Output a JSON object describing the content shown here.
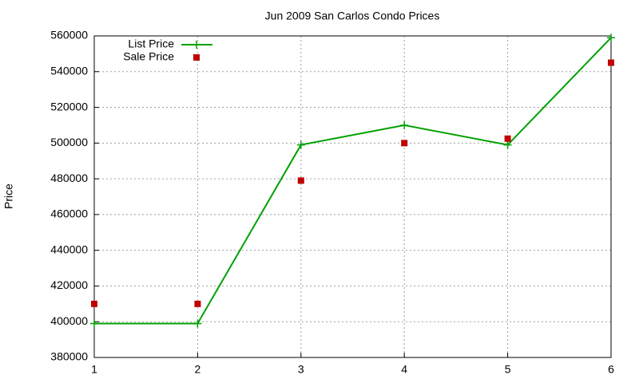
{
  "chart_data": {
    "type": "line",
    "title": "Jun 2009 San Carlos Condo Prices",
    "y_label": "Price",
    "x": [
      1,
      2,
      3,
      4,
      5,
      6
    ],
    "series": [
      {
        "name": "List Price",
        "color": "#00a000",
        "style": "linespoints",
        "values": [
          399000,
          399000,
          499000,
          510000,
          499000,
          559000
        ]
      },
      {
        "name": "Sale Price",
        "color": "#c00000",
        "style": "points",
        "values": [
          410000,
          410000,
          479000,
          500000,
          502500,
          545000
        ]
      }
    ],
    "xlim": [
      1,
      6
    ],
    "xticks": [
      1,
      2,
      3,
      4,
      5,
      6
    ],
    "ylim": [
      380000,
      560000
    ],
    "yticks": [
      380000,
      400000,
      420000,
      440000,
      460000,
      480000,
      500000,
      520000,
      540000,
      560000
    ],
    "grid": true,
    "legend": "top-left"
  }
}
